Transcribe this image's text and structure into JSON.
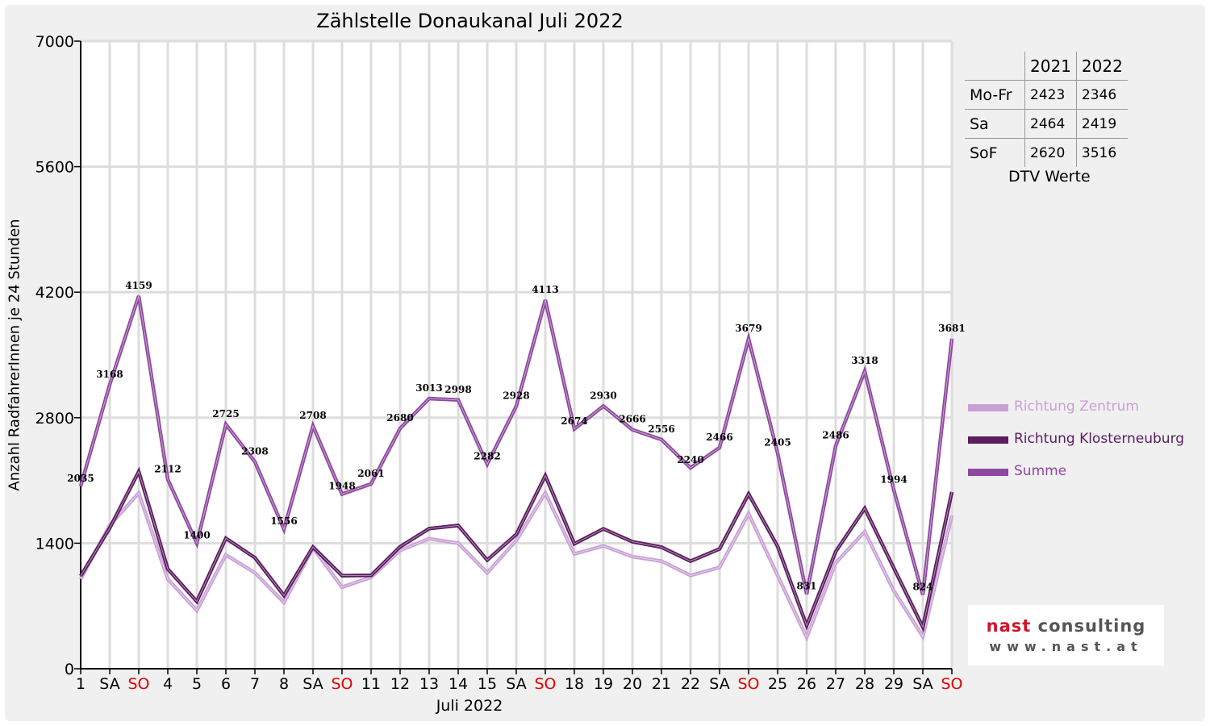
{
  "chart_data": {
    "type": "line",
    "title": "Zählstelle Donaukanal Juli 2022",
    "ylabel": "Anzahl RadfahrerInnen je 24 Stunden",
    "xlabel": "Juli 2022",
    "ylim": [
      0,
      7000
    ],
    "yticks": [
      0,
      1400,
      2800,
      4200,
      5600,
      7000
    ],
    "grid": true,
    "legend_position": "right",
    "categories": [
      "1",
      "SA",
      "SO",
      "4",
      "5",
      "6",
      "7",
      "8",
      "SA",
      "SO",
      "11",
      "12",
      "13",
      "14",
      "15",
      "SA",
      "SO",
      "18",
      "19",
      "20",
      "21",
      "22",
      "SA",
      "SO",
      "25",
      "26",
      "27",
      "28",
      "29",
      "SA",
      "SO"
    ],
    "category_colors": {
      "SO": "#e00000",
      "default": "#000000"
    },
    "series": [
      {
        "name": "Richtung Zentrum",
        "color": "#c9a0d6",
        "values": [
          1000,
          1600,
          1960,
          1000,
          650,
          1270,
          1070,
          740,
          1350,
          910,
          1020,
          1320,
          1450,
          1400,
          1070,
          1430,
          1960,
          1280,
          1370,
          1250,
          1200,
          1040,
          1130,
          1730,
          1040,
          350,
          1180,
          1530,
          870,
          360,
          1710
        ]
      },
      {
        "name": "Richtung Klosterneuburg",
        "color": "#5b1c60",
        "values": [
          1035,
          1568,
          2199,
          1112,
          750,
          1455,
          1238,
          816,
          1358,
          1038,
          1041,
          1360,
          1563,
          1598,
          1212,
          1498,
          2153,
          1394,
          1560,
          1416,
          1356,
          1200,
          1336,
          1949,
          1365,
          481,
          1306,
          1788,
          1124,
          464,
          1971
        ]
      },
      {
        "name": "Summe",
        "color": "#8e48a0",
        "values": [
          2035,
          3168,
          4159,
          2112,
          1400,
          2725,
          2308,
          1556,
          2708,
          1948,
          2061,
          2680,
          3013,
          2998,
          2282,
          2928,
          4113,
          2674,
          2930,
          2666,
          2556,
          2240,
          2466,
          3679,
          2405,
          831,
          2486,
          3318,
          1994,
          824,
          3681
        ]
      }
    ],
    "data_labels": {
      "series": "Summe",
      "values": [
        "2035",
        "3168",
        "4159",
        "2112",
        "1400",
        "2725",
        "2308",
        "1556",
        "2708",
        "1948",
        "2061",
        "2680",
        "3013",
        "2998",
        "2282",
        "2928",
        "4113",
        "2674",
        "2930",
        "2666",
        "2556",
        "2240",
        "2466",
        "3679",
        "2405",
        "831",
        "2486",
        "3318",
        "1994",
        "824",
        "3681"
      ]
    }
  },
  "dtv": {
    "years": [
      "2021",
      "2022"
    ],
    "rows": [
      {
        "label": "Mo-Fr",
        "v2021": "2423",
        "v2022": "2346"
      },
      {
        "label": "Sa",
        "v2021": "2464",
        "v2022": "2419"
      },
      {
        "label": "SoF",
        "v2021": "2620",
        "v2022": "3516"
      }
    ],
    "caption": "DTV Werte"
  },
  "logo": {
    "part1": "nast",
    "part2": "consulting",
    "web": "www.nast.at",
    "color_red": "#d0142a",
    "color_dark": "#555555"
  }
}
